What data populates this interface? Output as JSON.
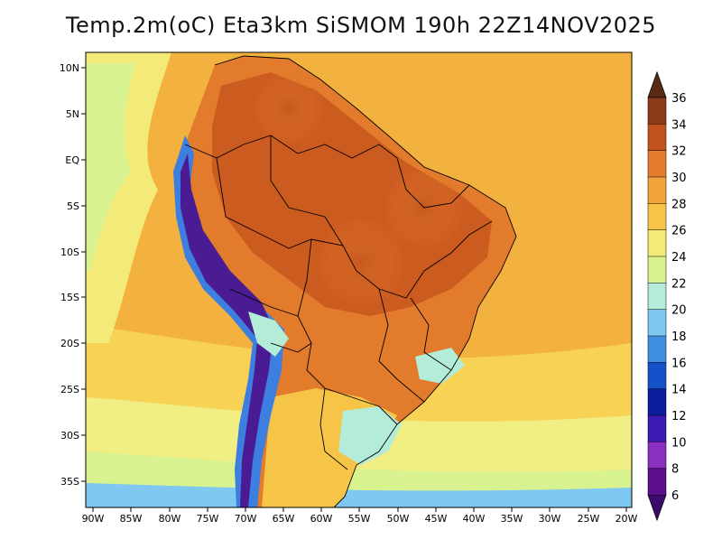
{
  "title": "Temp.2m(oC) Eta3km SiSMOM 190h 22Z14NOV2025",
  "lat_labels": [
    "10N",
    "5N",
    "EQ",
    "5S",
    "10S",
    "15S",
    "20S",
    "25S",
    "30S",
    "35S"
  ],
  "lon_labels": [
    "90W",
    "85W",
    "80W",
    "75W",
    "70W",
    "65W",
    "60W",
    "55W",
    "50W",
    "45W",
    "40W",
    "35W",
    "30W",
    "25W",
    "20W"
  ],
  "colorbar": {
    "labels": [
      "36",
      "34",
      "32",
      "30",
      "28",
      "26",
      "24",
      "22",
      "20",
      "18",
      "16",
      "14",
      "12",
      "10",
      "8",
      "6"
    ],
    "colors": [
      "#5a2a14",
      "#8b3a1a",
      "#c2531f",
      "#e57d2d",
      "#f0a43a",
      "#f6c548",
      "#f4ea77",
      "#d9f290",
      "#b3ecd8",
      "#7ec8f2",
      "#3f8fe3",
      "#1450c8",
      "#0b1f9c",
      "#3a1ab0",
      "#8a2fc2",
      "#5b0e8c",
      "#3d0a6e"
    ]
  },
  "colors": {
    "ocean_warm": "#f3b13f",
    "ocean_mid": "#f7d255",
    "ocean_cool": "#f1ee83",
    "land_hot": "#e0782b",
    "land_very_hot": "#b9521f",
    "andes": "#4b1b93",
    "andes_edge": "#3c7fe0",
    "border": "#000000"
  }
}
